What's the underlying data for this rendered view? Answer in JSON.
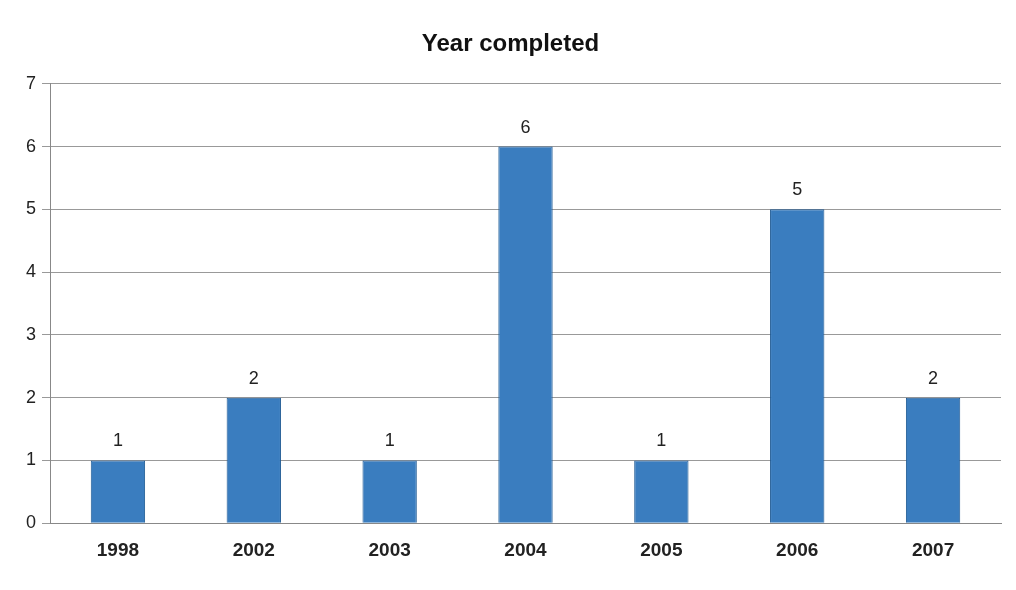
{
  "chart_data": {
    "type": "bar",
    "title": "Year completed",
    "categories": [
      "1998",
      "2002",
      "2003",
      "2004",
      "2005",
      "2006",
      "2007"
    ],
    "values": [
      1,
      2,
      1,
      6,
      1,
      5,
      2
    ],
    "color": "#3a7dbf",
    "ylim": [
      0,
      7
    ],
    "yticks": [
      0,
      1,
      2,
      3,
      4,
      5,
      6,
      7
    ],
    "grid": "y",
    "data_labels": true,
    "legend": false
  }
}
